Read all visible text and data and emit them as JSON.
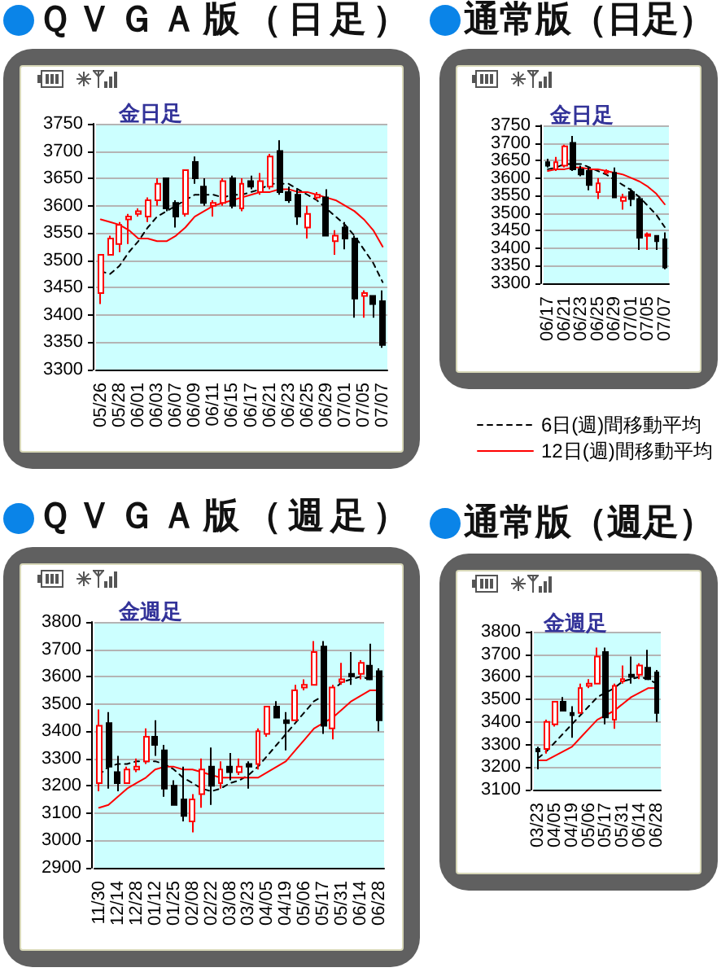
{
  "chart_data": [
    {
      "type": "candlestick",
      "title": "ＱＶＧＡ版（日足）",
      "subtitle": "金日足",
      "categories": [
        "05/26",
        null,
        "05/28",
        null,
        "06/01",
        null,
        "06/03",
        null,
        "06/07",
        null,
        "06/09",
        null,
        "06/11",
        null,
        "06/15",
        null,
        "06/17",
        null,
        "06/21",
        null,
        "06/23",
        null,
        "06/25",
        null,
        "06/29",
        null,
        "07/01",
        null,
        "07/05",
        null,
        "07/07"
      ],
      "ohlc": [
        [
          3440,
          3510,
          3420,
          3510
        ],
        [
          3510,
          3545,
          3510,
          3540
        ],
        [
          3530,
          3570,
          3515,
          3565
        ],
        [
          3575,
          3585,
          3530,
          3580
        ],
        [
          3585,
          3595,
          3580,
          3590
        ],
        [
          3580,
          3615,
          3570,
          3610
        ],
        [
          3610,
          3650,
          3600,
          3640
        ],
        [
          3650,
          3650,
          3590,
          3595
        ],
        [
          3605,
          3610,
          3560,
          3580
        ],
        [
          3585,
          3665,
          3580,
          3665
        ],
        [
          3680,
          3690,
          3640,
          3650
        ],
        [
          3635,
          3650,
          3600,
          3605
        ],
        [
          3600,
          3610,
          3580,
          3605
        ],
        [
          3605,
          3650,
          3600,
          3645
        ],
        [
          3650,
          3655,
          3595,
          3600
        ],
        [
          3595,
          3650,
          3590,
          3640
        ],
        [
          3645,
          3655,
          3630,
          3635
        ],
        [
          3625,
          3660,
          3620,
          3645
        ],
        [
          3635,
          3695,
          3630,
          3690
        ],
        [
          3700,
          3720,
          3620,
          3625
        ],
        [
          3625,
          3635,
          3605,
          3610
        ],
        [
          3620,
          3630,
          3565,
          3580
        ],
        [
          3560,
          3600,
          3540,
          3585
        ],
        [
          3615,
          3625,
          3610,
          3620
        ],
        [
          3615,
          3630,
          3545,
          3545
        ],
        [
          3535,
          3555,
          3510,
          3545
        ],
        [
          3560,
          3570,
          3520,
          3540
        ],
        [
          3540,
          3545,
          3395,
          3430
        ],
        [
          3435,
          3445,
          3395,
          3440
        ],
        [
          3435,
          3435,
          3395,
          3420
        ],
        [
          3425,
          3445,
          3340,
          3345
        ]
      ],
      "colors": [
        "#ff0000",
        "#ff0000",
        "#ff0000",
        "#ff0000",
        "#ff0000",
        "#ff0000",
        "#ff0000",
        "#000000",
        "#000000",
        "#ff0000",
        "#000000",
        "#000000",
        "#ff0000",
        "#ff0000",
        "#000000",
        "#ff0000",
        "#000000",
        "#ff0000",
        "#ff0000",
        "#000000",
        "#000000",
        "#000000",
        "#ff0000",
        "#ff0000",
        "#000000",
        "#ff0000",
        "#000000",
        "#000000",
        "#ff0000",
        "#000000",
        "#000000"
      ],
      "series": [
        {
          "type": "line",
          "color": "#000000",
          "line_style": "dashed",
          "values": [
            3480,
            3475,
            3490,
            3515,
            3535,
            3560,
            3580,
            3590,
            3600,
            3610,
            3620,
            3620,
            3620,
            3615,
            3620,
            3620,
            3625,
            3630,
            3640,
            3640,
            3640,
            3630,
            3620,
            3610,
            3595,
            3580,
            3565,
            3545,
            3520,
            3495,
            3460
          ]
        },
        {
          "type": "line",
          "color": "#ff0000",
          "line_style": "solid",
          "values": [
            3575,
            3570,
            3565,
            3555,
            3540,
            3540,
            3535,
            3535,
            3545,
            3560,
            3580,
            3590,
            3600,
            3605,
            3610,
            3615,
            3620,
            3625,
            3625,
            3630,
            3630,
            3625,
            3625,
            3620,
            3615,
            3610,
            3600,
            3590,
            3575,
            3555,
            3525
          ]
        }
      ],
      "ylim": [
        3300,
        3750
      ],
      "yticks": [
        3300,
        3350,
        3400,
        3450,
        3500,
        3550,
        3600,
        3650,
        3700,
        3750
      ],
      "grid": "y",
      "marker": "none"
    },
    {
      "type": "candlestick",
      "title": "通常版（日足）",
      "subtitle": "金日足",
      "categories": [
        "06/17",
        null,
        "06/21",
        null,
        "06/23",
        null,
        "06/25",
        null,
        "06/29",
        null,
        "07/01",
        null,
        "07/05",
        null,
        "07/07"
      ],
      "ohlc": [
        [
          3645,
          3655,
          3630,
          3635
        ],
        [
          3625,
          3660,
          3620,
          3645
        ],
        [
          3635,
          3695,
          3630,
          3690
        ],
        [
          3700,
          3720,
          3620,
          3625
        ],
        [
          3625,
          3635,
          3605,
          3610
        ],
        [
          3620,
          3630,
          3565,
          3580
        ],
        [
          3560,
          3600,
          3540,
          3585
        ],
        [
          3615,
          3625,
          3610,
          3620
        ],
        [
          3615,
          3630,
          3545,
          3545
        ],
        [
          3535,
          3555,
          3510,
          3545
        ],
        [
          3560,
          3570,
          3520,
          3540
        ],
        [
          3540,
          3545,
          3395,
          3430
        ],
        [
          3435,
          3445,
          3395,
          3440
        ],
        [
          3435,
          3435,
          3395,
          3420
        ],
        [
          3425,
          3445,
          3340,
          3345
        ]
      ],
      "colors": [
        "#000000",
        "#ff0000",
        "#ff0000",
        "#000000",
        "#000000",
        "#000000",
        "#ff0000",
        "#ff0000",
        "#000000",
        "#ff0000",
        "#000000",
        "#000000",
        "#ff0000",
        "#000000",
        "#000000"
      ],
      "series": [
        {
          "type": "line",
          "name": "6日(週)間移動平均",
          "color": "#000000",
          "line_style": "dashed",
          "values": [
            3625,
            3630,
            3640,
            3640,
            3640,
            3630,
            3620,
            3610,
            3595,
            3580,
            3565,
            3545,
            3520,
            3495,
            3460
          ]
        },
        {
          "type": "line",
          "name": "12日(週)間移動平均",
          "color": "#ff0000",
          "line_style": "solid",
          "values": [
            3620,
            3625,
            3625,
            3630,
            3630,
            3625,
            3625,
            3620,
            3615,
            3610,
            3600,
            3590,
            3575,
            3555,
            3525
          ]
        }
      ],
      "ylim": [
        3300,
        3750
      ],
      "yticks": [
        3300,
        3350,
        3400,
        3450,
        3500,
        3550,
        3600,
        3650,
        3700,
        3750
      ],
      "grid": "y",
      "marker": "none",
      "legend": "bottom"
    },
    {
      "type": "candlestick",
      "title": "ＱＶＧＡ版（週足）",
      "subtitle": "金週足",
      "categories": [
        "11/30",
        null,
        "12/14",
        null,
        "12/28",
        null,
        "01/12",
        null,
        "01/25",
        null,
        "02/08",
        null,
        "02/22",
        null,
        "03/08",
        null,
        "03/23",
        null,
        "04/05",
        null,
        "04/19",
        null,
        "05/06",
        null,
        "05/17",
        null,
        "05/31",
        null,
        "06/14",
        null,
        "06/28"
      ],
      "ohlc": [
        [
          3210,
          3480,
          3180,
          3420
        ],
        [
          3430,
          3470,
          3190,
          3270
        ],
        [
          3250,
          3310,
          3180,
          3210
        ],
        [
          3210,
          3270,
          3210,
          3260
        ],
        [
          3260,
          3300,
          3250,
          3270
        ],
        [
          3290,
          3410,
          3280,
          3380
        ],
        [
          3380,
          3440,
          3310,
          3350
        ],
        [
          3330,
          3350,
          3160,
          3190
        ],
        [
          3200,
          3220,
          3130,
          3130
        ],
        [
          3150,
          3270,
          3070,
          3090
        ],
        [
          3070,
          3170,
          3030,
          3150
        ],
        [
          3170,
          3300,
          3120,
          3260
        ],
        [
          3270,
          3340,
          3130,
          3200
        ],
        [
          3210,
          3290,
          3190,
          3260
        ],
        [
          3270,
          3320,
          3220,
          3250
        ],
        [
          3250,
          3300,
          3240,
          3270
        ],
        [
          3280,
          3290,
          3190,
          3270
        ],
        [
          3280,
          3410,
          3260,
          3400
        ],
        [
          3390,
          3490,
          3380,
          3490
        ],
        [
          3490,
          3510,
          3450,
          3450
        ],
        [
          3440,
          3470,
          3330,
          3430
        ],
        [
          3440,
          3570,
          3440,
          3550
        ],
        [
          3560,
          3590,
          3550,
          3570
        ],
        [
          3570,
          3730,
          3570,
          3690
        ],
        [
          3710,
          3730,
          3390,
          3420
        ],
        [
          3410,
          3570,
          3370,
          3560
        ],
        [
          3580,
          3650,
          3570,
          3590
        ],
        [
          3610,
          3690,
          3570,
          3600
        ],
        [
          3610,
          3660,
          3590,
          3650
        ],
        [
          3640,
          3720,
          3590,
          3590
        ],
        [
          3620,
          3630,
          3400,
          3440
        ]
      ],
      "colors": [
        "#ff0000",
        "#000000",
        "#000000",
        "#ff0000",
        "#ff0000",
        "#ff0000",
        "#000000",
        "#000000",
        "#000000",
        "#000000",
        "#ff0000",
        "#ff0000",
        "#000000",
        "#ff0000",
        "#000000",
        "#ff0000",
        "#000000",
        "#ff0000",
        "#ff0000",
        "#000000",
        "#000000",
        "#ff0000",
        "#ff0000",
        "#ff0000",
        "#000000",
        "#ff0000",
        "#ff0000",
        "#000000",
        "#ff0000",
        "#000000",
        "#000000"
      ],
      "series": [
        {
          "type": "line",
          "color": "#000000",
          "line_style": "dashed",
          "values": [
            3240,
            3270,
            3280,
            3280,
            3290,
            3290,
            3290,
            3280,
            3260,
            3230,
            3210,
            3190,
            3180,
            3190,
            3210,
            3220,
            3240,
            3270,
            3310,
            3350,
            3390,
            3430,
            3470,
            3510,
            3530,
            3550,
            3580,
            3590,
            3600,
            3590,
            null
          ]
        },
        {
          "type": "line",
          "color": "#ff0000",
          "line_style": "solid",
          "values": [
            3120,
            3130,
            3160,
            3190,
            3210,
            3230,
            3260,
            3270,
            3270,
            3260,
            3260,
            3250,
            3240,
            3230,
            3230,
            3230,
            3230,
            3230,
            3250,
            3270,
            3290,
            3330,
            3370,
            3410,
            3430,
            3450,
            3480,
            3510,
            3530,
            3550,
            3550
          ]
        }
      ],
      "ylim": [
        2900,
        3800
      ],
      "yticks": [
        2900,
        3000,
        3100,
        3200,
        3300,
        3400,
        3500,
        3600,
        3700,
        3800
      ],
      "grid": "y",
      "marker": "none"
    },
    {
      "type": "candlestick",
      "title": "通常版（週足）",
      "subtitle": "金週足",
      "categories": [
        "03/23",
        null,
        "04/05",
        null,
        "04/19",
        null,
        "05/06",
        null,
        "05/17",
        null,
        "05/31",
        null,
        "06/14",
        null,
        "06/28"
      ],
      "ohlc": [
        [
          3280,
          3290,
          3190,
          3270
        ],
        [
          3280,
          3410,
          3260,
          3400
        ],
        [
          3390,
          3490,
          3380,
          3490
        ],
        [
          3490,
          3510,
          3450,
          3450
        ],
        [
          3440,
          3470,
          3330,
          3430
        ],
        [
          3440,
          3570,
          3440,
          3550
        ],
        [
          3560,
          3590,
          3550,
          3570
        ],
        [
          3570,
          3730,
          3570,
          3690
        ],
        [
          3710,
          3730,
          3390,
          3420
        ],
        [
          3410,
          3570,
          3370,
          3560
        ],
        [
          3580,
          3650,
          3570,
          3590
        ],
        [
          3610,
          3690,
          3570,
          3600
        ],
        [
          3610,
          3660,
          3590,
          3650
        ],
        [
          3640,
          3720,
          3590,
          3590
        ],
        [
          3620,
          3630,
          3400,
          3440
        ]
      ],
      "colors": [
        "#000000",
        "#ff0000",
        "#ff0000",
        "#000000",
        "#000000",
        "#ff0000",
        "#ff0000",
        "#ff0000",
        "#000000",
        "#ff0000",
        "#ff0000",
        "#000000",
        "#ff0000",
        "#000000",
        "#000000"
      ],
      "series": [
        {
          "type": "line",
          "color": "#000000",
          "line_style": "dashed",
          "values": [
            3240,
            3270,
            3310,
            3350,
            3390,
            3430,
            3470,
            3510,
            3530,
            3550,
            3580,
            3590,
            3600,
            3590,
            3570
          ]
        },
        {
          "type": "line",
          "color": "#ff0000",
          "line_style": "solid",
          "values": [
            3230,
            3230,
            3250,
            3270,
            3290,
            3330,
            3370,
            3410,
            3430,
            3450,
            3480,
            3510,
            3530,
            3550,
            3550
          ]
        }
      ],
      "ylim": [
        3100,
        3800
      ],
      "yticks": [
        3100,
        3200,
        3300,
        3400,
        3500,
        3600,
        3700,
        3800
      ],
      "grid": "y",
      "marker": "none"
    }
  ]
}
